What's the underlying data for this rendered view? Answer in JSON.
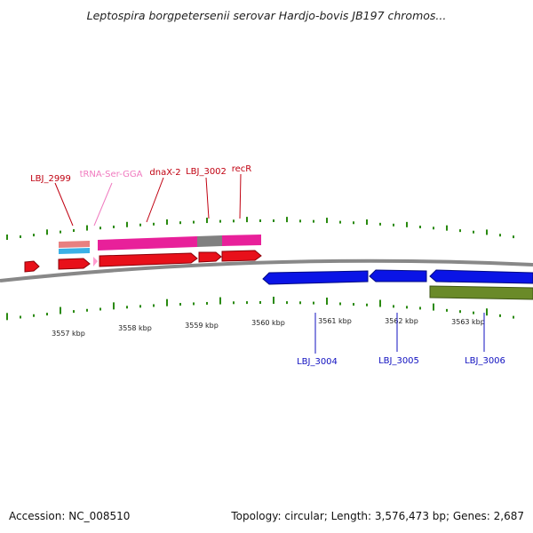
{
  "title": "Leptospira borgpetersenii serovar Hardjo-bovis JB197 chromos...",
  "footer": {
    "accession": "Accession: NC_008510",
    "summary": "Topology: circular; Length: 3,576,473 bp; Genes: 2,687"
  },
  "colors": {
    "backbone": "#888888",
    "cds": "#e8101a",
    "cds_rev": "#0a14e6",
    "gene_forward": "#e8209a",
    "gene_reverse": "#6a8a28",
    "trna": "#ff9bcf",
    "pseudo": "#3ab0e6",
    "misc": "#e88080",
    "gc_tick": "#2a8a10",
    "label_forward": "#c00010",
    "label_trna": "#f07abf",
    "label_reverse": "#1010c0"
  },
  "ruler": {
    "ticks": [
      {
        "label": "3557 kbp",
        "kbp": 3557
      },
      {
        "label": "3558 kbp",
        "kbp": 3558
      },
      {
        "label": "3559 kbp",
        "kbp": 3559
      },
      {
        "label": "3560 kbp",
        "kbp": 3560
      },
      {
        "label": "3561 kbp",
        "kbp": 3561
      },
      {
        "label": "3562 kbp",
        "kbp": 3562
      },
      {
        "label": "3563 kbp",
        "kbp": 3563
      }
    ]
  },
  "labels_forward": [
    {
      "text": "LBJ_2999",
      "type": "cds"
    },
    {
      "text": "tRNA-Ser-GGA",
      "type": "trna"
    },
    {
      "text": "dnaX-2",
      "type": "cds"
    },
    {
      "text": "LBJ_3002",
      "type": "cds"
    },
    {
      "text": "recR",
      "type": "cds"
    }
  ],
  "labels_reverse": [
    {
      "text": "LBJ_3004"
    },
    {
      "text": "LBJ_3005"
    },
    {
      "text": "LBJ_3006"
    }
  ]
}
